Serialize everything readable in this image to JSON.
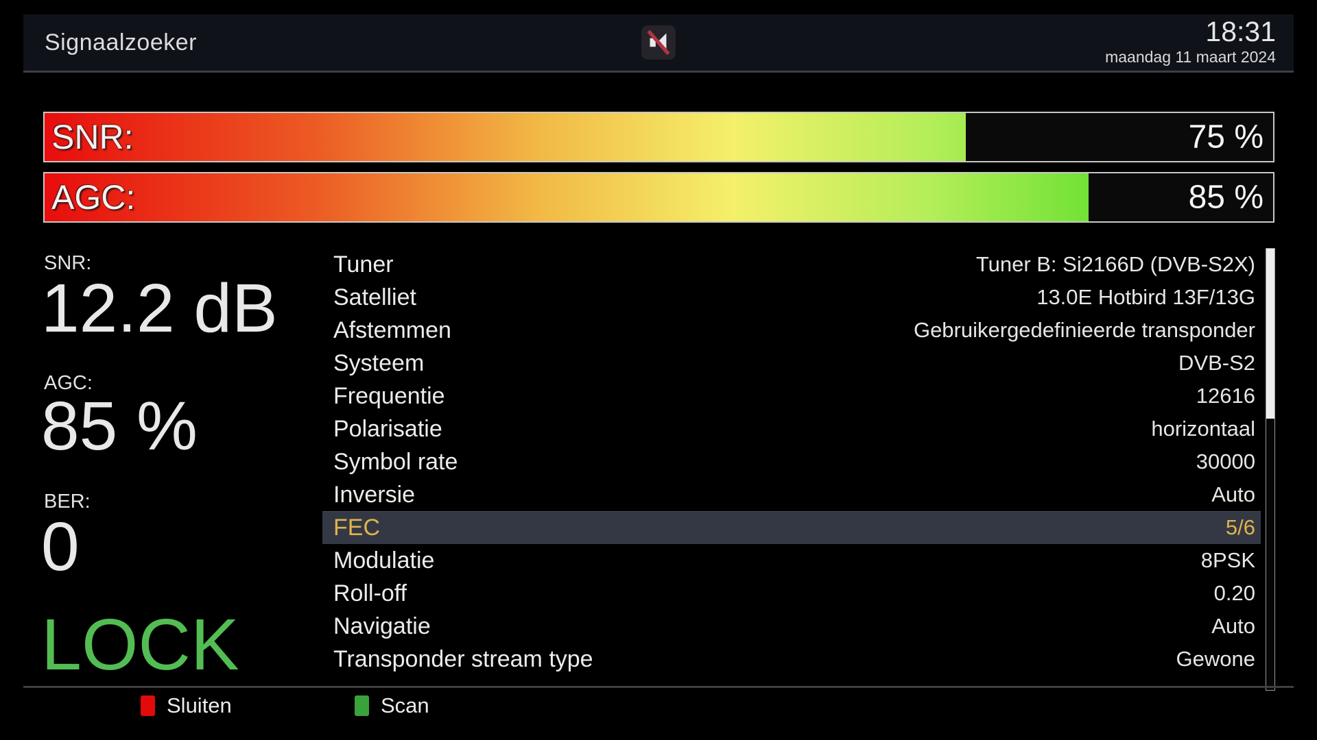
{
  "header": {
    "title": "Signaalzoeker",
    "time": "18:31",
    "date": "maandag 11 maart 2024",
    "mute_icon": "muted-speaker-icon"
  },
  "signal_bars": [
    {
      "label": "SNR:",
      "percent": 75,
      "value": "75 %"
    },
    {
      "label": "AGC:",
      "percent": 85,
      "value": "85 %"
    }
  ],
  "readouts": {
    "snr": {
      "label": "SNR:",
      "value": "12.2 dB"
    },
    "agc": {
      "label": "AGC:",
      "value": "85 %"
    },
    "ber": {
      "label": "BER:",
      "value": "0"
    },
    "lock": "LOCK"
  },
  "parameters": {
    "selected_index": 8,
    "rows": [
      {
        "label": "Tuner",
        "value": "Tuner B: Si2166D (DVB-S2X)"
      },
      {
        "label": "Satelliet",
        "value": "13.0E Hotbird 13F/13G"
      },
      {
        "label": "Afstemmen",
        "value": "Gebruikergedefinieerde transponder"
      },
      {
        "label": "Systeem",
        "value": "DVB-S2"
      },
      {
        "label": "Frequentie",
        "value": "12616"
      },
      {
        "label": "Polarisatie",
        "value": "horizontaal"
      },
      {
        "label": "Symbol rate",
        "value": "30000"
      },
      {
        "label": "Inversie",
        "value": "Auto"
      },
      {
        "label": "FEC",
        "value": "5/6"
      },
      {
        "label": "Modulatie",
        "value": "8PSK"
      },
      {
        "label": "Roll-off",
        "value": "0.20"
      },
      {
        "label": "Navigatie",
        "value": "Auto"
      },
      {
        "label": "Transponder stream type",
        "value": "Gewone"
      }
    ]
  },
  "footer": {
    "buttons": [
      {
        "key": "red",
        "color": "#e20a0a",
        "label": "Sluiten"
      },
      {
        "key": "green",
        "color": "#3aa23a",
        "label": "Scan"
      }
    ]
  },
  "colors": {
    "lock_green": "#53bd53",
    "selected_row_bg": "#343845",
    "selected_row_text": "#dfb449",
    "bar_gradient": [
      "#e80d0d",
      "#f2b844",
      "#f4f06a",
      "#3ed714"
    ]
  }
}
